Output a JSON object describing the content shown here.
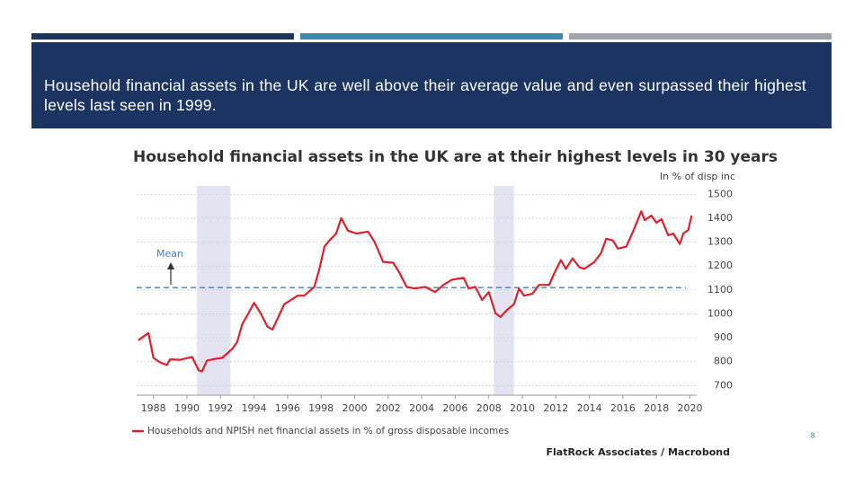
{
  "slide": {
    "header": "Household financial assets in the UK are well above their average value and even surpassed their highest levels last seen in 1999.",
    "page_number": 8
  },
  "chart_data": {
    "type": "line",
    "title": "Household financial assets in the UK are at their highest levels in 30 years",
    "y_axis_label": "In % of disp inc",
    "source": "FlatRock Associates / Macrobond",
    "xlim": [
      1987,
      2020.4
    ],
    "xticks": [
      1988,
      1990,
      1992,
      1994,
      1996,
      1998,
      2000,
      2002,
      2004,
      2006,
      2008,
      2010,
      2012,
      2014,
      2016,
      2018,
      2020
    ],
    "ylim": [
      660,
      1535
    ],
    "yticks": [
      700,
      800,
      900,
      1000,
      1100,
      1200,
      1300,
      1400,
      1500
    ],
    "y_axis_side": "right",
    "grid": true,
    "shaded_ranges": [
      [
        1990.6,
        1992.6
      ],
      [
        2008.3,
        2009.5
      ]
    ],
    "shade_color": "#e3e3f1",
    "mean": {
      "label": "Mean",
      "value": 1110,
      "color": "#4a7ebb"
    },
    "x": [
      1987.1,
      1987.7,
      1988,
      1988.4,
      1988.8,
      1989,
      1989.6,
      1990.3,
      1990.7,
      1990.9,
      1991.2,
      1991.7,
      1992.1,
      1992.7,
      1993,
      1993.3,
      1993.6,
      1994,
      1994.4,
      1994.8,
      1995.1,
      1995.5,
      1995.8,
      1996.2,
      1996.6,
      1997,
      1997.3,
      1997.6,
      1997.9,
      1998.2,
      1998.5,
      1998.9,
      1999.2,
      1999.6,
      2000.1,
      2000.8,
      2001.2,
      2001.7,
      2002.3,
      2002.7,
      2003.1,
      2003.6,
      2004.2,
      2004.8,
      2005.3,
      2005.8,
      2006.5,
      2006.8,
      2007.2,
      2007.6,
      2008,
      2008.4,
      2008.7,
      2009.1,
      2009.5,
      2009.8,
      2010.1,
      2010.6,
      2011,
      2011.6,
      2011.9,
      2012.3,
      2012.6,
      2013,
      2013.4,
      2013.7,
      2014.3,
      2014.7,
      2015,
      2015.4,
      2015.7,
      2016.2,
      2016.6,
      2017.1,
      2017.3,
      2017.7,
      2018,
      2018.3,
      2018.7,
      2019,
      2019.4,
      2019.6,
      2019.9,
      2020.1
    ],
    "series": [
      {
        "name": "Households and NPISH net financial assets in % of gross disposable incomes",
        "color": "#e01f2d",
        "values": [
          890,
          920,
          816,
          797,
          786,
          810,
          808,
          820,
          764,
          760,
          805,
          812,
          816,
          853,
          883,
          957,
          994,
          1046,
          1002,
          946,
          935,
          994,
          1040,
          1058,
          1076,
          1076,
          1095,
          1113,
          1188,
          1281,
          1307,
          1336,
          1400,
          1348,
          1336,
          1344,
          1299,
          1217,
          1214,
          1169,
          1113,
          1106,
          1113,
          1091,
          1121,
          1143,
          1151,
          1106,
          1113,
          1058,
          1091,
          1002,
          987,
          1017,
          1040,
          1106,
          1076,
          1084,
          1121,
          1121,
          1169,
          1225,
          1188,
          1232,
          1195,
          1188,
          1217,
          1255,
          1314,
          1307,
          1273,
          1281,
          1344,
          1429,
          1392,
          1411,
          1381,
          1396,
          1329,
          1336,
          1292,
          1336,
          1351,
          1411
        ]
      }
    ]
  }
}
